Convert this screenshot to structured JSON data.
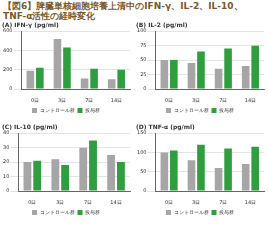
{
  "title": "【図6】脾臓単核細胞培養上清中のIFN-γ、IL-2、IL-10、TNF-α活性の経時変化",
  "chart_data": [
    {
      "type": "bar",
      "title": "(A) IFN-γ (pg/ml)",
      "categories": [
        "0日",
        "3日",
        "7日",
        "14日"
      ],
      "series": [
        {
          "name": "コントロール群",
          "color": "#a6a6a6",
          "values": [
            190,
            520,
            110,
            100
          ]
        },
        {
          "name": "投与群",
          "color": "#2e9e3e",
          "values": [
            220,
            430,
            210,
            200
          ]
        }
      ],
      "ylim": [
        0,
        600
      ],
      "yticks": [
        0,
        200,
        400,
        600
      ],
      "grid": true,
      "legend": "bottom"
    },
    {
      "type": "bar",
      "title": "(B) IL-2 (pg/ml)",
      "categories": [
        "0日",
        "3日",
        "7日",
        "14日"
      ],
      "series": [
        {
          "name": "コントロール群",
          "color": "#a6a6a6",
          "values": [
            50,
            45,
            35,
            40
          ]
        },
        {
          "name": "投与群",
          "color": "#2e9e3e",
          "values": [
            50,
            65,
            70,
            75
          ]
        }
      ],
      "ylim": [
        0,
        100
      ],
      "yticks": [
        0,
        25,
        50,
        75,
        100
      ],
      "grid": true,
      "legend": "bottom"
    },
    {
      "type": "bar",
      "title": "(C) IL-10 (pg/ml)",
      "categories": [
        "0日",
        "3日",
        "7日",
        "14日"
      ],
      "series": [
        {
          "name": "コントロール群",
          "color": "#a6a6a6",
          "values": [
            20,
            22,
            30,
            25
          ]
        },
        {
          "name": "投与群",
          "color": "#2e9e3e",
          "values": [
            21,
            18,
            35,
            20
          ]
        }
      ],
      "ylim": [
        0,
        40
      ],
      "yticks": [
        0,
        10,
        20,
        30,
        40
      ],
      "grid": true,
      "legend": "bottom"
    },
    {
      "type": "bar",
      "title": "(D) TNF-α (pg/ml)",
      "categories": [
        "0日",
        "3日",
        "7日",
        "14日"
      ],
      "series": [
        {
          "name": "コントロール群",
          "color": "#a6a6a6",
          "values": [
            100,
            80,
            60,
            70
          ]
        },
        {
          "name": "投与群",
          "color": "#2e9e3e",
          "values": [
            105,
            120,
            110,
            115
          ]
        }
      ],
      "ylim": [
        0,
        150
      ],
      "yticks": [
        0,
        50,
        100,
        150
      ],
      "grid": true,
      "legend": "bottom"
    }
  ]
}
